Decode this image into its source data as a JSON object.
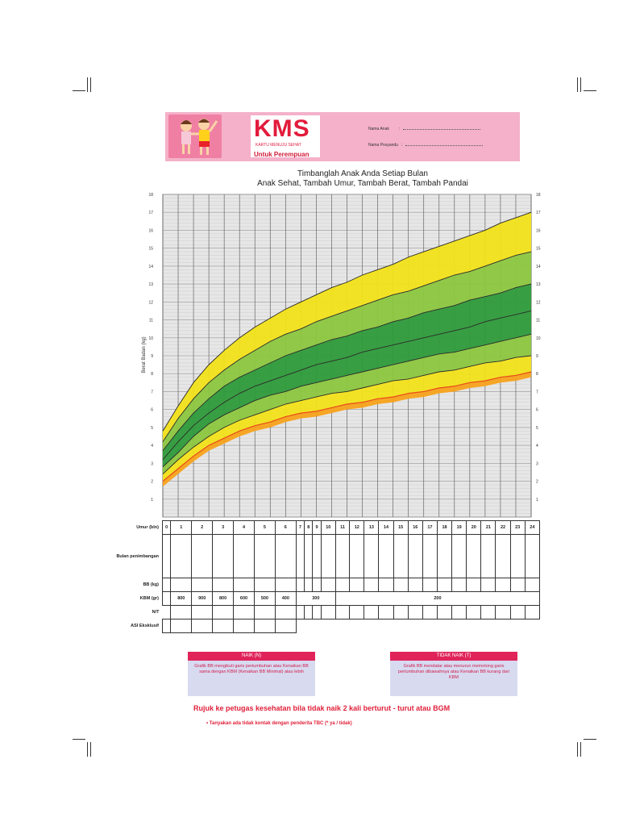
{
  "header": {
    "logo": "KMS",
    "logo_sub": "KARTU MENUJU SEHAT",
    "card_for": "Untuk Perempuan",
    "field_name": "Nama Anak",
    "field_posyandu": "Nama Posyandu"
  },
  "chart_title_line1": "Timbanglah Anak Anda Setiap Bulan",
  "chart_title_line2": "Anak Sehat, Tambah Umur, Tambah Berat, Tambah Pandai",
  "chart_data": {
    "type": "area",
    "title": "Timbanglah Anak Anda Setiap Bulan",
    "ylabel": "Berat Badan (kg)",
    "xlabel": "Umur (bln)",
    "xlim": [
      0,
      24
    ],
    "ylim": [
      0,
      18
    ],
    "y_ticks": [
      1,
      2,
      3,
      4,
      5,
      6,
      7,
      8,
      9,
      10,
      11,
      12,
      13,
      14,
      15,
      16,
      17,
      18
    ],
    "x": [
      0,
      1,
      2,
      3,
      4,
      5,
      6,
      7,
      8,
      9,
      10,
      11,
      12,
      13,
      14,
      15,
      16,
      17,
      18,
      19,
      20,
      21,
      22,
      23,
      24
    ],
    "series": [
      {
        "values": [
          2.0,
          2.7,
          3.4,
          4.0,
          4.4,
          4.8,
          5.1,
          5.3,
          5.6,
          5.8,
          5.9,
          6.1,
          6.3,
          6.4,
          6.6,
          6.7,
          6.9,
          7.0,
          7.2,
          7.3,
          7.5,
          7.6,
          7.8,
          7.9,
          8.1
        ]
      },
      {
        "values": [
          2.4,
          3.2,
          3.9,
          4.5,
          5.0,
          5.4,
          5.7,
          6.0,
          6.3,
          6.5,
          6.7,
          6.9,
          7.0,
          7.2,
          7.4,
          7.6,
          7.7,
          7.9,
          8.1,
          8.2,
          8.4,
          8.6,
          8.7,
          8.9,
          9.0
        ]
      },
      {
        "values": [
          2.8,
          3.6,
          4.5,
          5.2,
          5.7,
          6.1,
          6.5,
          6.8,
          7.0,
          7.3,
          7.5,
          7.7,
          7.9,
          8.1,
          8.3,
          8.5,
          8.7,
          8.9,
          9.1,
          9.2,
          9.4,
          9.6,
          9.8,
          10.0,
          10.2
        ]
      },
      {
        "values": [
          3.2,
          4.2,
          5.1,
          5.8,
          6.4,
          6.9,
          7.3,
          7.6,
          7.9,
          8.2,
          8.5,
          8.7,
          8.9,
          9.2,
          9.4,
          9.6,
          9.8,
          10.0,
          10.2,
          10.4,
          10.6,
          10.9,
          11.1,
          11.3,
          11.5
        ]
      },
      {
        "values": [
          3.7,
          4.8,
          5.8,
          6.6,
          7.3,
          7.8,
          8.2,
          8.6,
          9.0,
          9.3,
          9.6,
          9.9,
          10.1,
          10.4,
          10.6,
          10.9,
          11.1,
          11.4,
          11.6,
          11.8,
          12.1,
          12.3,
          12.5,
          12.8,
          13.0
        ]
      },
      {
        "values": [
          4.2,
          5.5,
          6.6,
          7.5,
          8.2,
          8.8,
          9.3,
          9.8,
          10.2,
          10.5,
          10.9,
          11.2,
          11.5,
          11.8,
          12.1,
          12.4,
          12.6,
          12.9,
          13.2,
          13.5,
          13.7,
          14.0,
          14.3,
          14.6,
          14.8
        ]
      },
      {
        "values": [
          4.8,
          6.2,
          7.5,
          8.5,
          9.3,
          10.0,
          10.6,
          11.1,
          11.6,
          12.0,
          12.4,
          12.8,
          13.1,
          13.5,
          13.8,
          14.1,
          14.5,
          14.8,
          15.1,
          15.4,
          15.7,
          16.0,
          16.4,
          16.7,
          17.0
        ]
      }
    ],
    "band_colors": [
      "#f7a21b",
      "#f2e21a",
      "#8cc63f",
      "#2e9a3a",
      "#2e9a3a",
      "#8cc63f",
      "#f2e21a"
    ]
  },
  "table": {
    "row_labels": {
      "umur": "Umur (bln)",
      "bulan": "Bulan penimbangan",
      "bb": "BB (kg)",
      "kbm": "KBM (gr)",
      "nt": "N/T",
      "asi": "ASI Eksklusif"
    },
    "months": [
      "0",
      "1",
      "2",
      "3",
      "4",
      "5",
      "6",
      "7",
      "8",
      "9",
      "10",
      "11",
      "12",
      "13",
      "14",
      "15",
      "16",
      "17",
      "18",
      "19",
      "20",
      "21",
      "22",
      "23",
      "24"
    ],
    "kbm_values": [
      "800",
      "900",
      "800",
      "600",
      "500",
      "400"
    ],
    "kbm_300": "300",
    "kbm_200": "200"
  },
  "legend": {
    "naik_title": "NAIK (N)",
    "naik_text": "Grafik BB mengikuti garis pertumbuhan atau Kenaikan BB sama dengan KBM (Kenaikan BB Minimal) atau lebih",
    "tidak_title": "TIDAK NAIK (T)",
    "tidak_text": "Grafik BB mendatar atau menurun memotong garis pertumbuhan dibawahnya atau Kenaikan BB kurang dari KBM"
  },
  "refer_text": "Rujuk ke petugas kesehatan bila tidak naik 2 kali berturut - turut atau BGM",
  "note_text": "•   Tanyakan ada tidak kontak dengan penderita TBC (* ya / tidak)"
}
